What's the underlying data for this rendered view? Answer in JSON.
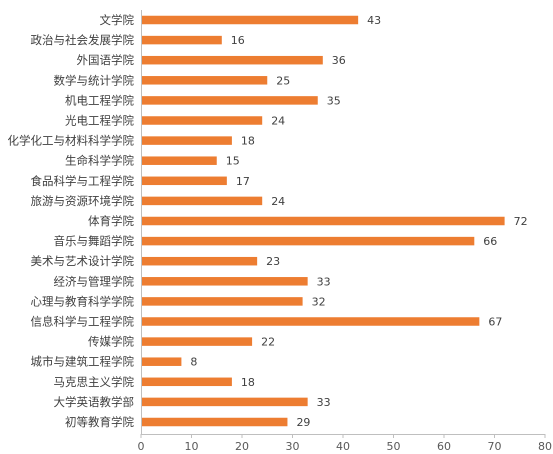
{
  "chart_data": {
    "type": "bar",
    "orientation": "horizontal",
    "title": "",
    "xlabel": "",
    "ylabel": "",
    "xlim": [
      0,
      80
    ],
    "x_ticks": [
      0,
      10,
      20,
      30,
      40,
      50,
      60,
      70,
      80
    ],
    "grid": false,
    "legend": "none",
    "bar_color": "#ED7D31",
    "categories": [
      "文学院",
      "政治与社会发展学院",
      "外国语学院",
      "数学与统计学院",
      "机电工程学院",
      "光电工程学院",
      "化学化工与材料科学学院",
      "生命科学学院",
      "食品科学与工程学院",
      "旅游与资源环境学院",
      "体育学院",
      "音乐与舞蹈学院",
      "美术与艺术设计学院",
      "经济与管理学院",
      "心理与教育科学学院",
      "信息科学与工程学院",
      "传媒学院",
      "城市与建筑工程学院",
      "马克思主义学院",
      "大学英语教学部",
      "初等教育学院"
    ],
    "values": [
      43,
      16,
      36,
      25,
      35,
      24,
      18,
      15,
      17,
      24,
      72,
      66,
      23,
      33,
      32,
      67,
      22,
      8,
      18,
      33,
      29
    ]
  }
}
